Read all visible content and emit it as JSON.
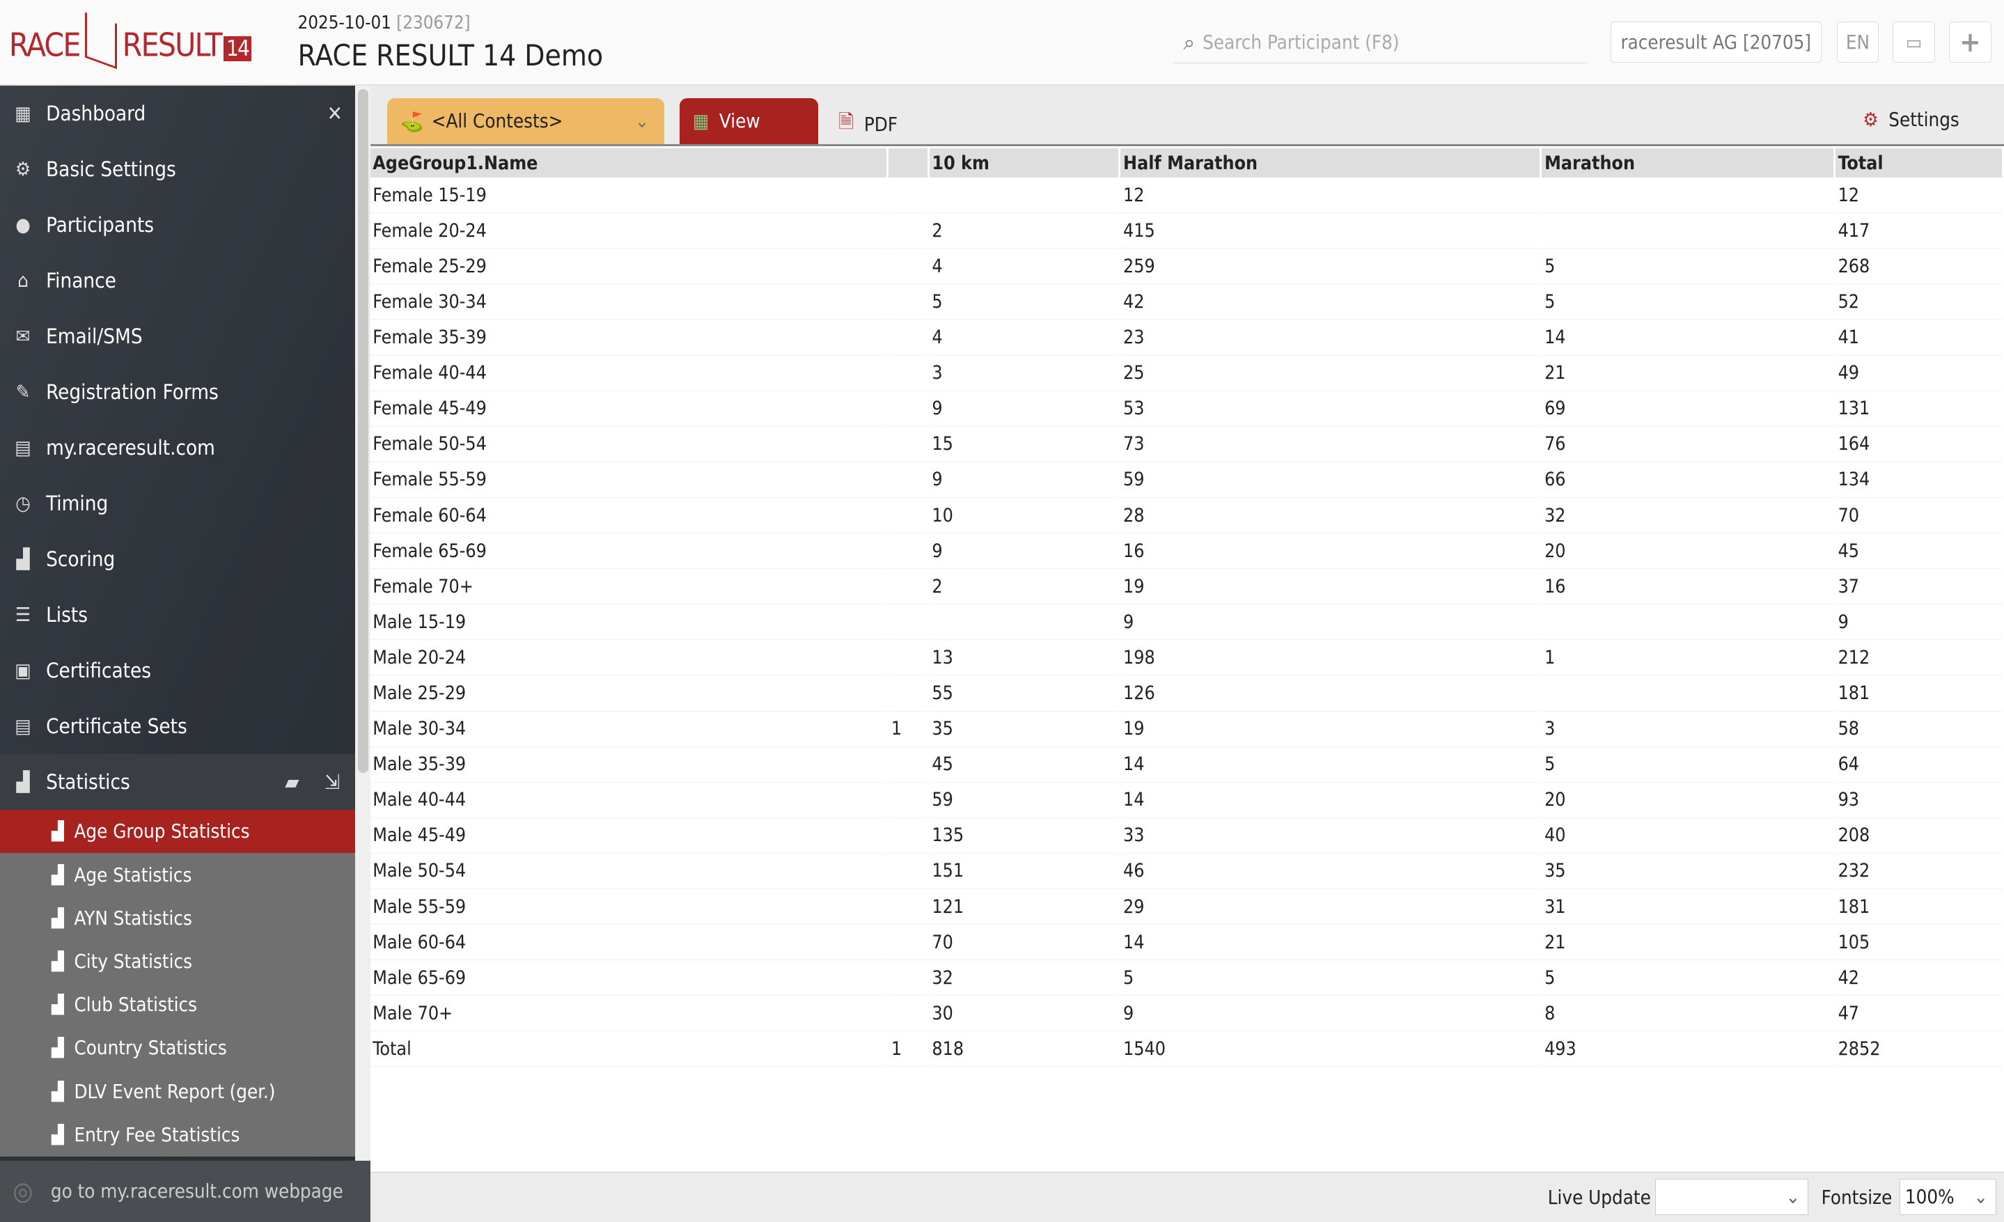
{
  "header": {
    "logo": "RACE RESULT 14",
    "event_date": "2025-10-01",
    "event_id": "[230672]",
    "event_title": "RACE RESULT 14 Demo",
    "search_placeholder": "Search Participant (F8)",
    "account": "raceresult AG [20705]",
    "language": "EN"
  },
  "sidebar": {
    "items": [
      {
        "label": "Dashboard",
        "icon": "dashboard-icon"
      },
      {
        "label": "Basic Settings",
        "icon": "gear-icon"
      },
      {
        "label": "Participants",
        "icon": "user-icon"
      },
      {
        "label": "Finance",
        "icon": "bank-icon"
      },
      {
        "label": "Email/SMS",
        "icon": "mail-icon"
      },
      {
        "label": "Registration Forms",
        "icon": "form-icon"
      },
      {
        "label": "my.raceresult.com",
        "icon": "web-icon"
      },
      {
        "label": "Timing",
        "icon": "stopwatch-icon"
      },
      {
        "label": "Scoring",
        "icon": "podium-icon"
      },
      {
        "label": "Lists",
        "icon": "list-icon"
      },
      {
        "label": "Certificates",
        "icon": "certificate-icon"
      },
      {
        "label": "Certificate Sets",
        "icon": "certificate-set-icon"
      },
      {
        "label": "Statistics",
        "icon": "chart-icon"
      }
    ],
    "sub_items": [
      {
        "label": "Age Group Statistics",
        "active": true
      },
      {
        "label": "Age Statistics"
      },
      {
        "label": "AYN Statistics"
      },
      {
        "label": "City Statistics"
      },
      {
        "label": "Club Statistics"
      },
      {
        "label": "Country Statistics"
      },
      {
        "label": "DLV Event Report (ger.)"
      },
      {
        "label": "Entry Fee Statistics"
      }
    ],
    "web_link": "go to my.raceresult.com webpage"
  },
  "toolbar": {
    "contest": "<All Contests>",
    "view": "View",
    "pdf": "PDF",
    "settings": "Settings"
  },
  "table": {
    "columns": [
      "AgeGroup1.Name",
      "",
      "10 km",
      "Half Marathon",
      "Marathon",
      "Total"
    ],
    "rows": [
      [
        "Female 15-19",
        "",
        "",
        "12",
        "",
        "12"
      ],
      [
        "Female 20-24",
        "",
        "2",
        "415",
        "",
        "417"
      ],
      [
        "Female 25-29",
        "",
        "4",
        "259",
        "5",
        "268"
      ],
      [
        "Female 30-34",
        "",
        "5",
        "42",
        "5",
        "52"
      ],
      [
        "Female 35-39",
        "",
        "4",
        "23",
        "14",
        "41"
      ],
      [
        "Female 40-44",
        "",
        "3",
        "25",
        "21",
        "49"
      ],
      [
        "Female 45-49",
        "",
        "9",
        "53",
        "69",
        "131"
      ],
      [
        "Female 50-54",
        "",
        "15",
        "73",
        "76",
        "164"
      ],
      [
        "Female 55-59",
        "",
        "9",
        "59",
        "66",
        "134"
      ],
      [
        "Female 60-64",
        "",
        "10",
        "28",
        "32",
        "70"
      ],
      [
        "Female 65-69",
        "",
        "9",
        "16",
        "20",
        "45"
      ],
      [
        "Female 70+",
        "",
        "2",
        "19",
        "16",
        "37"
      ],
      [
        "Male 15-19",
        "",
        "",
        "9",
        "",
        "9"
      ],
      [
        "Male 20-24",
        "",
        "13",
        "198",
        "1",
        "212"
      ],
      [
        "Male 25-29",
        "",
        "55",
        "126",
        "",
        "181"
      ],
      [
        "Male 30-34",
        "1",
        "35",
        "19",
        "3",
        "58"
      ],
      [
        "Male 35-39",
        "",
        "45",
        "14",
        "5",
        "64"
      ],
      [
        "Male 40-44",
        "",
        "59",
        "14",
        "20",
        "93"
      ],
      [
        "Male 45-49",
        "",
        "135",
        "33",
        "40",
        "208"
      ],
      [
        "Male 50-54",
        "",
        "151",
        "46",
        "35",
        "232"
      ],
      [
        "Male 55-59",
        "",
        "121",
        "29",
        "31",
        "181"
      ],
      [
        "Male 60-64",
        "",
        "70",
        "14",
        "21",
        "105"
      ],
      [
        "Male 65-69",
        "",
        "32",
        "5",
        "5",
        "42"
      ],
      [
        "Male 70+",
        "",
        "30",
        "9",
        "8",
        "47"
      ],
      [
        "Total",
        "1",
        "818",
        "1540",
        "493",
        "2852"
      ]
    ]
  },
  "footer": {
    "live_update_label": "Live Update",
    "live_update_value": "",
    "fontsize_label": "Fontsize",
    "fontsize_value": "100%"
  },
  "colors": {
    "brand": "#b3282d",
    "active": "#a8231f",
    "contest": "#efb865"
  }
}
